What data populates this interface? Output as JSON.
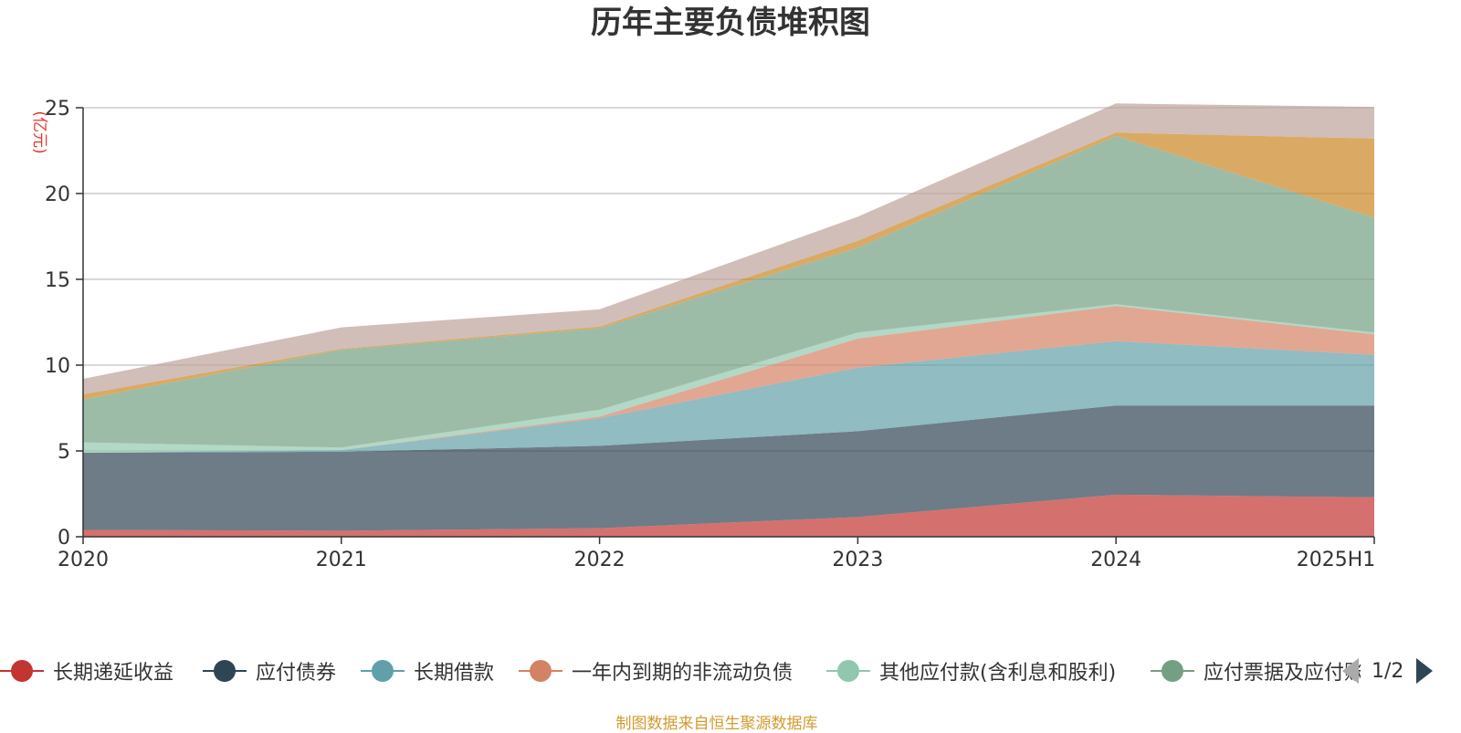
{
  "chart_data": {
    "type": "area",
    "stacked": true,
    "title": "历年主要负债堆积图",
    "ylabel": "(亿元)",
    "source_note": "制图数据来自恒生聚源数据库",
    "categories": [
      "2020",
      "2021",
      "2022",
      "2023",
      "2024",
      "2025H1"
    ],
    "ylim": [
      0,
      25
    ],
    "yticks": [
      0,
      5,
      10,
      15,
      20,
      25
    ],
    "grid": true,
    "legend_position": "bottom",
    "legend_page": "1/2",
    "series": [
      {
        "name": "长期递延收益",
        "color": "#c23531",
        "values": [
          0.4,
          0.35,
          0.5,
          1.15,
          2.45,
          2.3
        ]
      },
      {
        "name": "应付债券",
        "color": "#2f4554",
        "values": [
          4.5,
          4.6,
          4.8,
          5.0,
          5.2,
          5.35
        ]
      },
      {
        "name": "长期借款",
        "color": "#61a0a8",
        "values": [
          0.0,
          0.1,
          1.6,
          3.7,
          3.75,
          2.95
        ]
      },
      {
        "name": "一年内到期的非流动负债",
        "color": "#d48265",
        "values": [
          0.0,
          0.0,
          0.1,
          1.7,
          2.05,
          1.2
        ]
      },
      {
        "name": "其他应付款(含利息和股利)",
        "color": "#91c7ae",
        "values": [
          0.6,
          0.15,
          0.4,
          0.35,
          0.1,
          0.1
        ]
      },
      {
        "name": "应付票据及应付账款",
        "color": "#749f83",
        "values": [
          2.5,
          5.7,
          4.75,
          4.95,
          9.8,
          6.7
        ]
      },
      {
        "name": "",
        "color": "#ca8622",
        "values": [
          0.3,
          0.05,
          0.1,
          0.4,
          0.2,
          4.6
        ]
      },
      {
        "name": "",
        "color": "#bda29a",
        "values": [
          0.9,
          1.25,
          1.0,
          1.4,
          1.7,
          1.85
        ]
      }
    ]
  },
  "legend": {
    "items": [
      {
        "label": "长期递延收益",
        "color": "#c23531"
      },
      {
        "label": "应付债券",
        "color": "#2f4554"
      },
      {
        "label": "长期借款",
        "color": "#61a0a8"
      },
      {
        "label": "一年内到期的非流动负债",
        "color": "#d48265"
      },
      {
        "label": "其他应付款(含利息和股利)",
        "color": "#91c7ae"
      },
      {
        "label": "应付票据及应付账款",
        "color": "#749f83"
      }
    ]
  }
}
